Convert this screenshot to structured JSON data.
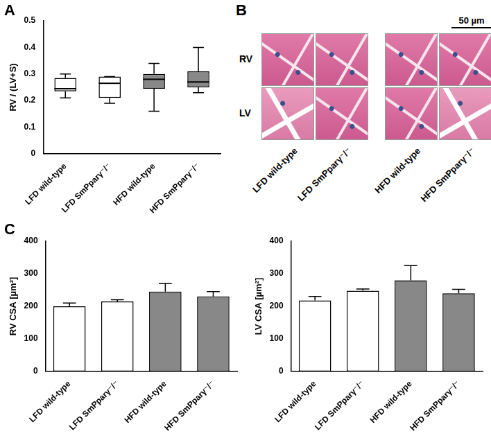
{
  "chart_data": [
    {
      "panel": "A",
      "type": "box",
      "y_label": "RV / (LV+S)",
      "categories": [
        "LFD wild-type",
        "LFD SmPparγ⁻/⁻",
        "HFD wild-type",
        "HFD SmPparγ⁻/⁻"
      ],
      "min": [
        0.21,
        0.19,
        0.16,
        0.23
      ],
      "q1": [
        0.235,
        0.21,
        0.245,
        0.25
      ],
      "median": [
        0.245,
        0.265,
        0.28,
        0.27
      ],
      "q3": [
        0.285,
        0.29,
        0.3,
        0.31
      ],
      "max": [
        0.3,
        0.29,
        0.34,
        0.4
      ],
      "colors": [
        "#ffffff",
        "#ffffff",
        "#888888",
        "#888888"
      ],
      "ylim": [
        0,
        0.5
      ],
      "yticks": [
        0,
        0.1,
        0.2,
        0.3,
        0.4,
        0.5
      ],
      "grid": false
    },
    {
      "panel": "C",
      "type": "bar",
      "y_label": "RV CSA [µm²]",
      "categories": [
        "LFD wild-type",
        "LFD SmPparγ⁻/⁻",
        "HFD wild-type",
        "HFD SmPparγ⁻/⁻"
      ],
      "values": [
        200,
        215,
        245,
        230
      ],
      "errors": [
        10,
        5,
        25,
        15
      ],
      "colors": [
        "#ffffff",
        "#ffffff",
        "#888888",
        "#888888"
      ],
      "ylim": [
        0,
        400
      ],
      "yticks": [
        0,
        100,
        200,
        300,
        400
      ],
      "grid": false
    },
    {
      "type": "bar",
      "y_label": "LV CSA [µm²]",
      "categories": [
        "LFD wild-type",
        "LFD SmPparγ⁻/⁻",
        "HFD wild-type",
        "HFD SmPparγ⁻/⁻"
      ],
      "values": [
        218,
        248,
        280,
        240
      ],
      "errors": [
        12,
        5,
        45,
        12
      ],
      "colors": [
        "#ffffff",
        "#ffffff",
        "#888888",
        "#888888"
      ],
      "ylim": [
        0,
        400
      ],
      "yticks": [
        0,
        100,
        200,
        300,
        400
      ],
      "grid": false
    }
  ],
  "images": {
    "panel": "B",
    "scale_bar": "50 µm",
    "row_labels": [
      "RV",
      "LV"
    ],
    "column_labels": [
      "LFD wild-type",
      "LFD SmPparγ⁻/⁻",
      "HFD wild-type",
      "HFD SmPparγ⁻/⁻"
    ]
  }
}
